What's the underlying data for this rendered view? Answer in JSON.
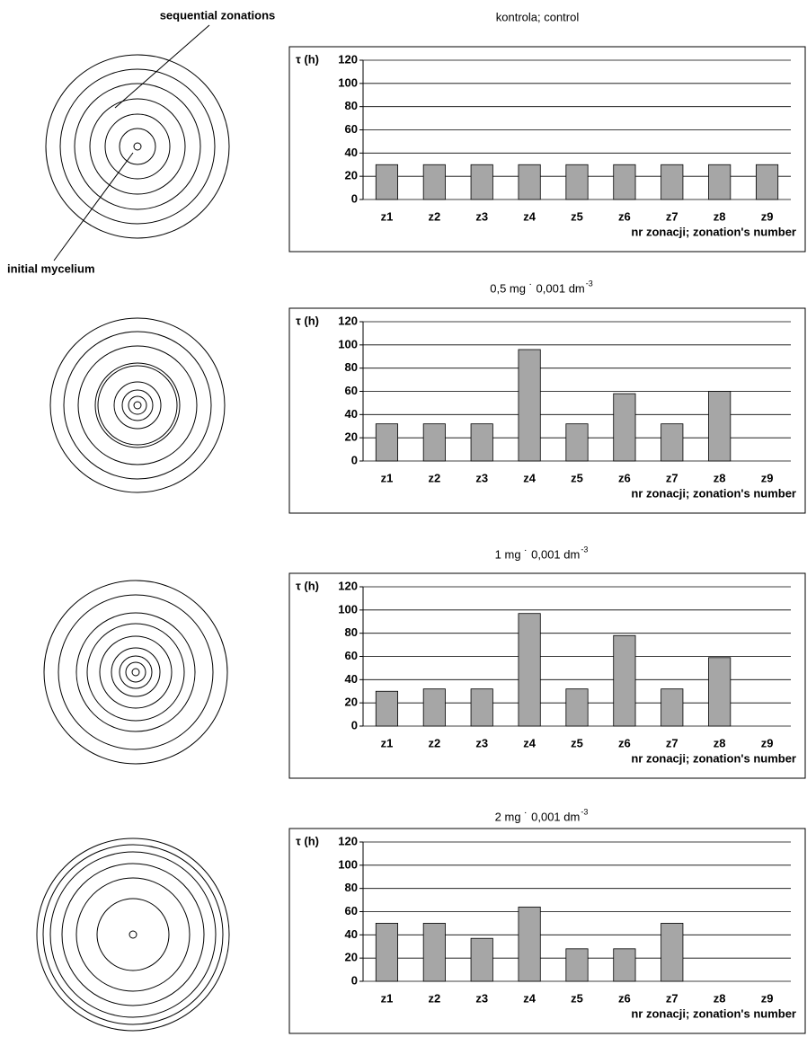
{
  "diagram": {
    "label_top": "sequential zonations",
    "label_bottom": "initial mycelium"
  },
  "chart_data": [
    {
      "type": "bar",
      "title": "kontrola; control",
      "ylabel": "τ (h)",
      "xlabel": "nr zonacji; zonation's number",
      "categories": [
        "z1",
        "z2",
        "z3",
        "z4",
        "z5",
        "z6",
        "z7",
        "z8",
        "z9"
      ],
      "values": [
        30,
        30,
        30,
        30,
        30,
        30,
        30,
        30,
        30
      ],
      "color": "#a6a6a6",
      "ylim": [
        0,
        120
      ],
      "yticks": [
        0,
        20,
        40,
        60,
        80,
        100,
        120
      ],
      "grid": true
    },
    {
      "type": "bar",
      "title": "0,5 mg ˙ 0,001 dm",
      "title_superscript": "-3",
      "ylabel": "τ (h)",
      "xlabel": "nr zonacji; zonation's number",
      "categories": [
        "z1",
        "z2",
        "z3",
        "z4",
        "z5",
        "z6",
        "z7",
        "z8",
        "z9"
      ],
      "values": [
        32,
        32,
        32,
        96,
        32,
        58,
        32,
        60,
        null
      ],
      "color": "#a6a6a6",
      "ylim": [
        0,
        120
      ],
      "yticks": [
        0,
        20,
        40,
        60,
        80,
        100,
        120
      ],
      "grid": true
    },
    {
      "type": "bar",
      "title": "1 mg ˙ 0,001 dm",
      "title_superscript": "-3",
      "ylabel": "τ (h)",
      "xlabel": "nr zonacji; zonation's number",
      "categories": [
        "z1",
        "z2",
        "z3",
        "z4",
        "z5",
        "z6",
        "z7",
        "z8",
        "z9"
      ],
      "values": [
        30,
        32,
        32,
        97,
        32,
        78,
        32,
        59,
        null
      ],
      "color": "#a6a6a6",
      "ylim": [
        0,
        120
      ],
      "yticks": [
        0,
        20,
        40,
        60,
        80,
        100,
        120
      ],
      "grid": true
    },
    {
      "type": "bar",
      "title": "2 mg ˙ 0,001 dm",
      "title_superscript": "-3",
      "ylabel": "τ (h)",
      "xlabel": "nr zonacji; zonation's number",
      "categories": [
        "z1",
        "z2",
        "z3",
        "z4",
        "z5",
        "z6",
        "z7",
        "z8",
        "z9"
      ],
      "values": [
        50,
        50,
        37,
        64,
        28,
        28,
        50,
        null,
        null
      ],
      "color": "#a6a6a6",
      "ylim": [
        0,
        120
      ],
      "yticks": [
        0,
        20,
        40,
        60,
        80,
        100,
        120
      ],
      "grid": true
    }
  ]
}
